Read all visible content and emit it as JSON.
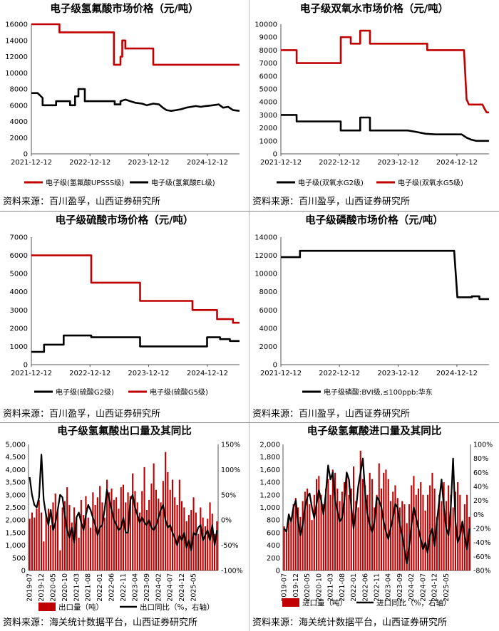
{
  "sources": {
    "p1": "资料来源：百川盈孚，山西证券研究所",
    "p2": "资料来源：百川盈孚，山西证券研究所",
    "p3": "资料来源：百川盈孚，山西证券研究所",
    "p4": "资料来源：百川盈孚，山西证券研究所",
    "p5": "资料来源：海关统计数据平台，山西证券研究所",
    "p6": "资料来源：海关统计数据平台，山西证券研究所"
  },
  "colors": {
    "red": "#c00000",
    "black": "#000000",
    "bar": "#c00000"
  },
  "chart_data": [
    {
      "id": "p1",
      "type": "line",
      "title": "电子级氢氟酸市场价格（元/吨）",
      "x_start": "2021-12-12",
      "x_end": "2025-06-30",
      "xticks": [
        "2021-12-12",
        "2022-12-12",
        "2023-12-12",
        "2024-12-12"
      ],
      "ylim": [
        0,
        16000
      ],
      "yticks": [
        0,
        2000,
        4000,
        6000,
        8000,
        10000,
        12000,
        14000,
        16000
      ],
      "series": [
        {
          "name": "电子级(氢氟酸UPSSS级)",
          "color": "#c00000",
          "points": [
            [
              "2021-12-12",
              16000
            ],
            [
              "2022-06-05",
              16000
            ],
            [
              "2022-06-05",
              15000
            ],
            [
              "2023-05-10",
              15000
            ],
            [
              "2023-05-10",
              11000
            ],
            [
              "2023-06-20",
              11000
            ],
            [
              "2023-06-20",
              12000
            ],
            [
              "2023-07-01",
              12000
            ],
            [
              "2023-07-01",
              14000
            ],
            [
              "2023-07-20",
              14000
            ],
            [
              "2023-07-20",
              13000
            ],
            [
              "2024-01-10",
              13000
            ],
            [
              "2024-01-10",
              11000
            ],
            [
              "2025-06-30",
              11000
            ]
          ]
        },
        {
          "name": "电子级(氢氟酸EL级)",
          "color": "#000000",
          "points": [
            [
              "2021-12-12",
              7500
            ],
            [
              "2022-01-20",
              7500
            ],
            [
              "2022-02-20",
              6900
            ],
            [
              "2022-02-20",
              6000
            ],
            [
              "2022-05-15",
              6000
            ],
            [
              "2022-05-15",
              6500
            ],
            [
              "2022-08-10",
              6500
            ],
            [
              "2022-08-10",
              6000
            ],
            [
              "2022-09-10",
              6000
            ],
            [
              "2022-09-10",
              7100
            ],
            [
              "2022-10-01",
              7100
            ],
            [
              "2022-10-01",
              8000
            ],
            [
              "2022-11-10",
              8000
            ],
            [
              "2022-11-10",
              6500
            ],
            [
              "2023-05-15",
              6500
            ],
            [
              "2023-05-15",
              6100
            ],
            [
              "2023-06-20",
              6100
            ],
            [
              "2023-06-20",
              6500
            ],
            [
              "2023-07-20",
              6700
            ],
            [
              "2023-08-20",
              6500
            ],
            [
              "2023-09-20",
              6300
            ],
            [
              "2023-11-01",
              6200
            ],
            [
              "2023-12-01",
              6000
            ],
            [
              "2024-01-10",
              6200
            ],
            [
              "2024-02-15",
              6100
            ],
            [
              "2024-03-10",
              5700
            ],
            [
              "2024-04-01",
              5400
            ],
            [
              "2024-05-01",
              5300
            ],
            [
              "2024-06-01",
              5400
            ],
            [
              "2024-07-01",
              5500
            ],
            [
              "2024-08-01",
              5700
            ],
            [
              "2024-09-01",
              5800
            ],
            [
              "2024-10-01",
              5900
            ],
            [
              "2024-11-01",
              5800
            ],
            [
              "2024-12-01",
              5900
            ],
            [
              "2025-01-15",
              6000
            ],
            [
              "2025-02-20",
              6100
            ],
            [
              "2025-03-20",
              5700
            ],
            [
              "2025-04-20",
              5800
            ],
            [
              "2025-05-20",
              5400
            ],
            [
              "2025-06-30",
              5300
            ]
          ]
        }
      ]
    },
    {
      "id": "p2",
      "type": "line",
      "title": "电子级双氧水市场价格（元/吨）",
      "x_start": "2021-12-12",
      "x_end": "2025-06-30",
      "xticks": [
        "2021-12-12",
        "2022-12-12",
        "2023-12-12",
        "2024-12-12"
      ],
      "ylim": [
        0,
        10000
      ],
      "yticks": [
        0,
        1000,
        2000,
        3000,
        4000,
        5000,
        6000,
        7000,
        8000,
        9000,
        10000
      ],
      "series": [
        {
          "name": "电子级(双氧水G2级)",
          "color": "#000000",
          "points": [
            [
              "2021-12-12",
              3000
            ],
            [
              "2022-03-20",
              3000
            ],
            [
              "2022-03-20",
              2500
            ],
            [
              "2022-12-20",
              2500
            ],
            [
              "2022-12-20",
              1800
            ],
            [
              "2023-04-20",
              1800
            ],
            [
              "2023-04-20",
              2800
            ],
            [
              "2023-06-20",
              2800
            ],
            [
              "2023-06-20",
              1800
            ],
            [
              "2024-02-10",
              1800
            ],
            [
              "2024-04-01",
              1700
            ],
            [
              "2024-06-01",
              1550
            ],
            [
              "2024-08-01",
              1500
            ],
            [
              "2025-01-10",
              1500
            ],
            [
              "2025-02-10",
              1250
            ],
            [
              "2025-03-10",
              1100
            ],
            [
              "2025-04-10",
              1000
            ],
            [
              "2025-06-30",
              1000
            ]
          ]
        },
        {
          "name": "电子级(双氧水G5级)",
          "color": "#c00000",
          "points": [
            [
              "2021-12-12",
              8000
            ],
            [
              "2022-03-20",
              8000
            ],
            [
              "2022-03-20",
              7000
            ],
            [
              "2022-12-20",
              7000
            ],
            [
              "2022-12-20",
              9000
            ],
            [
              "2023-02-20",
              9000
            ],
            [
              "2023-02-20",
              8500
            ],
            [
              "2023-04-20",
              8500
            ],
            [
              "2023-04-20",
              9500
            ],
            [
              "2023-06-20",
              9500
            ],
            [
              "2023-06-20",
              8500
            ],
            [
              "2024-06-10",
              8500
            ],
            [
              "2024-06-10",
              8000
            ],
            [
              "2025-01-25",
              8000
            ],
            [
              "2025-02-10",
              4200
            ],
            [
              "2025-02-25",
              3800
            ],
            [
              "2025-05-20",
              3800
            ],
            [
              "2025-06-01",
              3500
            ],
            [
              "2025-06-15",
              3200
            ],
            [
              "2025-06-30",
              3200
            ]
          ]
        }
      ]
    },
    {
      "id": "p3",
      "type": "line",
      "title": "电子级硫酸市场价格（元/吨）",
      "x_start": "2021-12-12",
      "x_end": "2025-06-30",
      "xticks": [
        "2021-12-12",
        "2022-12-12",
        "2023-12-12",
        "2024-12-12"
      ],
      "ylim": [
        0,
        7000
      ],
      "yticks": [
        0,
        1000,
        2000,
        3000,
        4000,
        5000,
        6000,
        7000
      ],
      "series": [
        {
          "name": "电子级(硫酸G2级)",
          "color": "#000000",
          "points": [
            [
              "2021-12-12",
              700
            ],
            [
              "2022-03-01",
              700
            ],
            [
              "2022-03-01",
              1100
            ],
            [
              "2022-07-01",
              1100
            ],
            [
              "2022-07-01",
              1600
            ],
            [
              "2022-12-20",
              1600
            ],
            [
              "2022-12-20",
              1500
            ],
            [
              "2023-10-20",
              1500
            ],
            [
              "2023-10-20",
              1000
            ],
            [
              "2024-12-10",
              1000
            ],
            [
              "2024-12-10",
              1500
            ],
            [
              "2025-03-01",
              1500
            ],
            [
              "2025-03-01",
              1400
            ],
            [
              "2025-05-01",
              1400
            ],
            [
              "2025-05-01",
              1300
            ],
            [
              "2025-06-30",
              1300
            ]
          ]
        },
        {
          "name": "电子级(硫酸G5级)",
          "color": "#c00000",
          "points": [
            [
              "2021-12-12",
              6000
            ],
            [
              "2022-12-20",
              6000
            ],
            [
              "2022-12-20",
              4500
            ],
            [
              "2023-10-20",
              4500
            ],
            [
              "2023-10-20",
              3500
            ],
            [
              "2024-09-10",
              3500
            ],
            [
              "2024-09-10",
              3000
            ],
            [
              "2025-02-10",
              3000
            ],
            [
              "2025-02-10",
              2500
            ],
            [
              "2025-05-20",
              2500
            ],
            [
              "2025-05-20",
              2300
            ],
            [
              "2025-06-30",
              2300
            ]
          ]
        }
      ]
    },
    {
      "id": "p4",
      "type": "line",
      "title": "电子级磷酸市场价格（元/吨）",
      "x_start": "2021-12-12",
      "x_end": "2025-06-30",
      "xticks": [
        "2021-12-12",
        "2022-12-12",
        "2023-12-12",
        "2024-12-12"
      ],
      "ylim": [
        0,
        14000
      ],
      "yticks": [
        0,
        2000,
        4000,
        6000,
        8000,
        10000,
        12000,
        14000
      ],
      "series": [
        {
          "name": "电子级磷酸:BVI级,≤100ppb:华东",
          "color": "#000000",
          "points": [
            [
              "2021-12-12",
              11800
            ],
            [
              "2022-04-10",
              11800
            ],
            [
              "2022-04-10",
              12500
            ],
            [
              "2024-11-25",
              12500
            ],
            [
              "2024-12-15",
              7400
            ],
            [
              "2025-03-15",
              7400
            ],
            [
              "2025-03-15",
              7500
            ],
            [
              "2025-05-01",
              7500
            ],
            [
              "2025-05-01",
              7200
            ],
            [
              "2025-06-30",
              7200
            ]
          ]
        }
      ]
    },
    {
      "id": "p5",
      "type": "bar",
      "title": "电子级氢氟酸出口量及其同比",
      "xticks": [
        "2019-07",
        "2019-12",
        "2020-05",
        "2020-10",
        "2021-03",
        "2021-08",
        "2022-01",
        "2022-06",
        "2022-11",
        "2023-04",
        "2023-09",
        "2024-02",
        "2024-07",
        "2024-12",
        "2025-05"
      ],
      "ylim": [
        0,
        5000
      ],
      "yticks": [
        0,
        500,
        1000,
        1500,
        2000,
        2500,
        3000,
        3500,
        4000,
        4500,
        5000
      ],
      "y2lim": [
        -100,
        150
      ],
      "y2ticks": [
        -100,
        -50,
        0,
        50,
        100,
        150
      ],
      "bar_name": "出口量（吨）",
      "line_name": "出口同比（%，右轴）",
      "months_start": "2019-07",
      "bars": [
        2050,
        2300,
        2100,
        2450,
        2800,
        2300,
        1150,
        2250,
        2450,
        1800,
        2700,
        3050,
        2400,
        800,
        2500,
        2750,
        3300,
        2600,
        1900,
        2500,
        2100,
        1300,
        2800,
        2200,
        2950,
        2100,
        1700,
        3100,
        2600,
        2900,
        3350,
        2700,
        2100,
        3600,
        3100,
        3250,
        2800,
        2900,
        2450,
        3300,
        3400,
        2700,
        3100,
        2950,
        3850,
        3150,
        2700,
        2300,
        3150,
        4100,
        2400,
        2800,
        3450,
        4250,
        3200,
        2850,
        2700,
        3550,
        4700,
        3900,
        3200,
        3600,
        2900,
        2600,
        3600,
        2750,
        2500,
        1950,
        2200,
        2400,
        2900,
        2300,
        1450,
        2500,
        2100,
        1750,
        2050,
        2700,
        2250,
        1450,
        1950
      ],
      "yoy": [
        85,
        50,
        30,
        25,
        45,
        130,
        40,
        10,
        -10,
        20,
        -20,
        -5,
        20,
        50,
        45,
        10,
        -20,
        -35,
        -15,
        -45,
        5,
        15,
        -5,
        -20,
        10,
        30,
        20,
        5,
        -10,
        -30,
        -15,
        -10,
        20,
        60,
        40,
        20,
        0,
        -10,
        -20,
        -15,
        5,
        -25,
        -25,
        40,
        50,
        25,
        10,
        -5,
        5,
        -5,
        -10,
        0,
        -15,
        -20,
        -10,
        5,
        20,
        30,
        0,
        -15,
        -10,
        -25,
        -35,
        -50,
        -30,
        -40,
        -25,
        -55,
        -40,
        -60,
        -25,
        -30,
        -15,
        -10,
        -40,
        -30,
        -20,
        -40,
        -10,
        -50,
        -20
      ]
    },
    {
      "id": "p6",
      "type": "bar",
      "title": "电子级氢氟酸进口量及其同比",
      "xticks": [
        "2019-07",
        "2019-12",
        "2020-05",
        "2020-10",
        "2021-03",
        "2021-08",
        "2022-01",
        "2022-06",
        "2022-11",
        "2023-04",
        "2023-09",
        "2024-02",
        "2024-07",
        "2024-12",
        "2025-05"
      ],
      "ylim": [
        0,
        2000
      ],
      "yticks": [
        0,
        200,
        400,
        600,
        800,
        1000,
        1200,
        1400,
        1600,
        1800,
        2000
      ],
      "y2lim": [
        -80,
        100
      ],
      "y2ticks": [
        -80,
        -60,
        -40,
        -20,
        0,
        20,
        40,
        60,
        80,
        100
      ],
      "bar_name": "进口量（吨）",
      "line_name": "进口同比（%，右轴）",
      "months_start": "2019-07",
      "bars": [
        700,
        600,
        900,
        800,
        1050,
        1150,
        1000,
        850,
        1100,
        1250,
        1300,
        1050,
        800,
        1200,
        1450,
        1500,
        1200,
        1050,
        1300,
        1450,
        1200,
        1600,
        1550,
        1300,
        1100,
        1250,
        1400,
        1550,
        1200,
        1300,
        1650,
        1100,
        1000,
        1900,
        1450,
        1350,
        1200,
        1550,
        1450,
        1000,
        1200,
        1700,
        1300,
        1550,
        1600,
        1450,
        1100,
        1250,
        1350,
        1150,
        1000,
        1100,
        1050,
        750,
        1050,
        1350,
        1500,
        1200,
        1300,
        1400,
        1200,
        950,
        1200,
        1350,
        1550,
        1300,
        850,
        1200,
        1100,
        1400,
        1100,
        1350,
        1200,
        1000,
        1250,
        1400,
        1200,
        700,
        1050,
        1200,
        850
      ],
      "yoy": [
        -20,
        -25,
        0,
        -10,
        10,
        20,
        -10,
        -30,
        -15,
        10,
        25,
        30,
        10,
        -5,
        15,
        35,
        20,
        0,
        30,
        70,
        50,
        60,
        20,
        5,
        -10,
        -5,
        20,
        60,
        50,
        10,
        -20,
        5,
        40,
        60,
        80,
        30,
        0,
        -15,
        -25,
        -10,
        25,
        20,
        10,
        -10,
        -25,
        -35,
        -20,
        -5,
        15,
        10,
        -15,
        -30,
        -50,
        -70,
        -45,
        -15,
        10,
        -5,
        -20,
        -35,
        -50,
        -40,
        -55,
        -30,
        -20,
        -45,
        -10,
        20,
        50,
        10,
        -20,
        -30,
        10,
        80,
        -10,
        -40,
        -30,
        -10,
        -30,
        -50,
        -20
      ]
    }
  ]
}
